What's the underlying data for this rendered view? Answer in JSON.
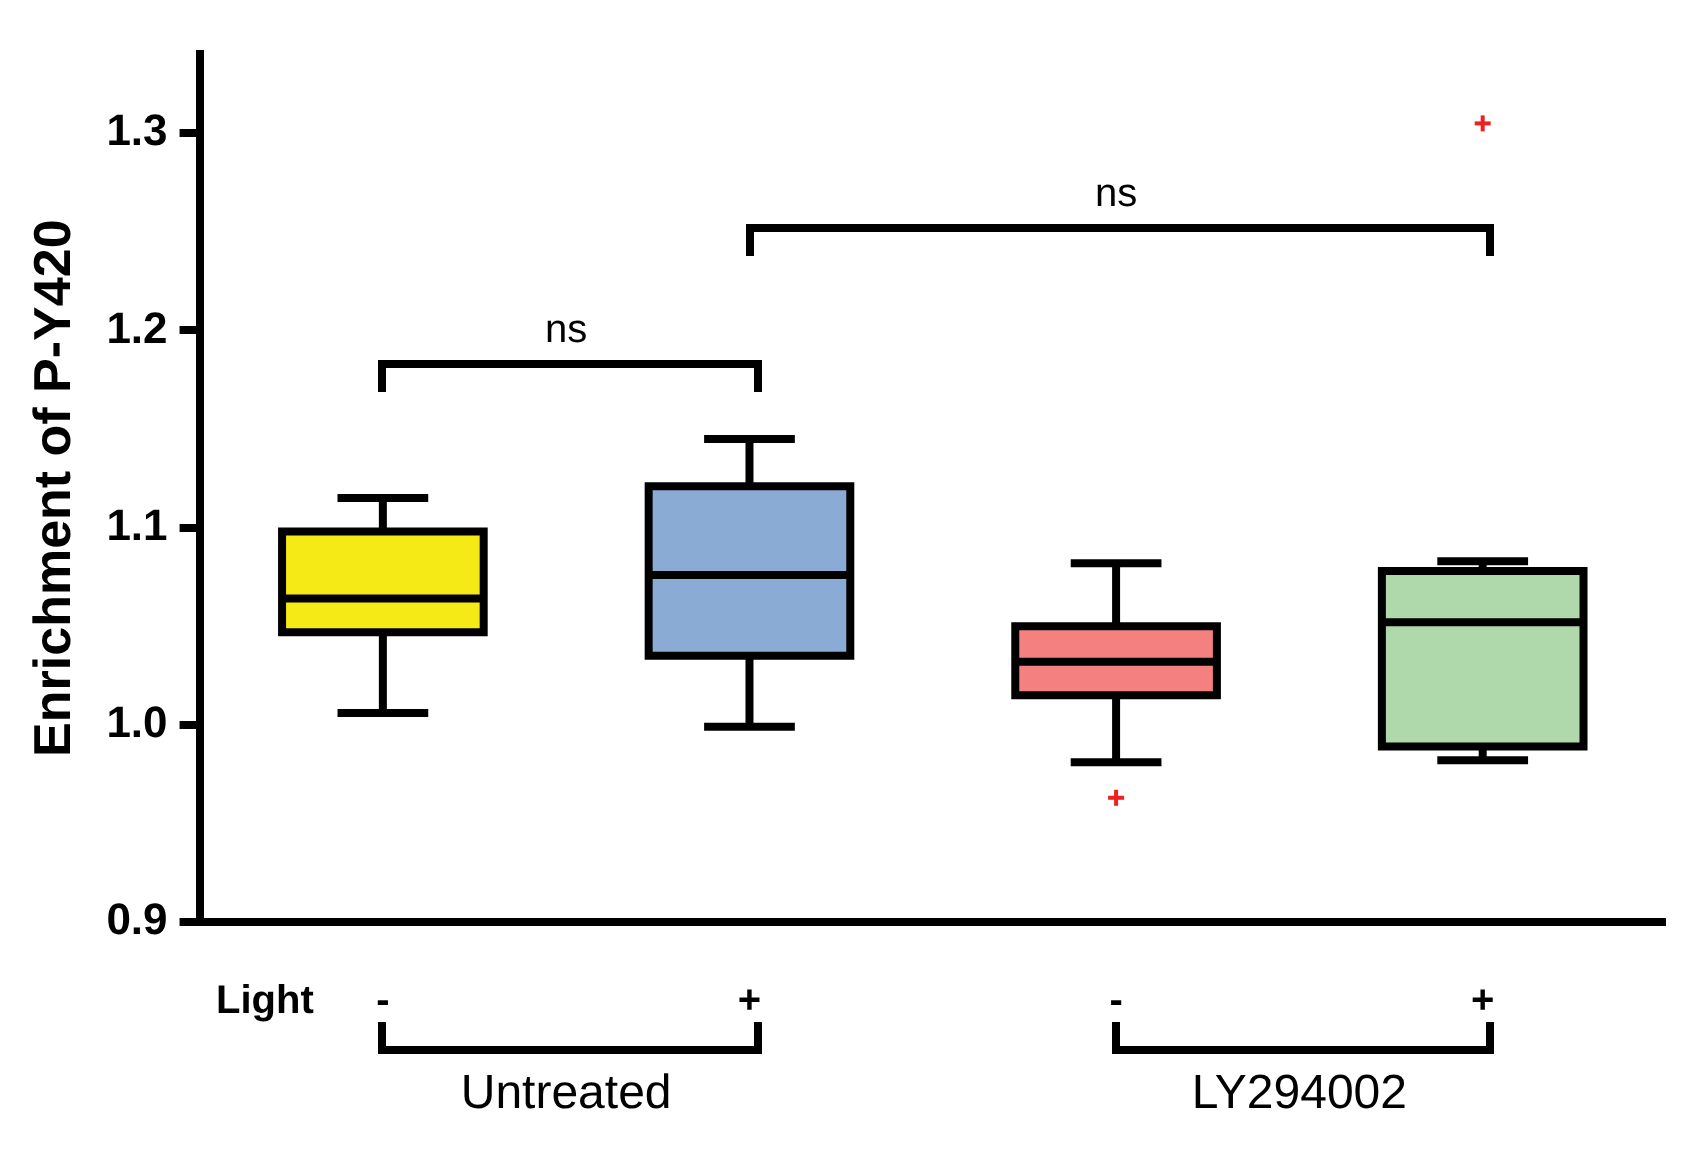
{
  "chart_data": {
    "type": "box",
    "ylabel": "Enrichment of P-Y420",
    "xlabel": "Light",
    "categories": [
      "-",
      "+",
      "-",
      "+"
    ],
    "colors": [
      "#f5e916",
      "#8aabd3",
      "#f48080",
      "#b0d9ab"
    ],
    "boxes": [
      {
        "low": 1.006,
        "q1": 1.047,
        "median": 1.064,
        "q3": 1.098,
        "high": 1.115
      },
      {
        "low": 0.999,
        "q1": 1.035,
        "median": 1.076,
        "q3": 1.121,
        "high": 1.145
      },
      {
        "low": 0.981,
        "q1": 1.015,
        "median": 1.032,
        "q3": 1.05,
        "high": 1.082,
        "outliers": [
          0.963
        ]
      },
      {
        "low": 0.982,
        "q1": 0.989,
        "median": 1.052,
        "q3": 1.078,
        "high": 1.083,
        "outliers": [
          1.305
        ]
      }
    ],
    "ylim": [
      0.9,
      1.34
    ],
    "yticks": [
      0.9,
      {
        "value": 1,
        "label": "1.0"
      },
      1.1,
      1.2,
      1.3
    ],
    "grid": false,
    "legend": false,
    "annotations": [
      "ns",
      "ns",
      "Untreated",
      "LY294002"
    ]
  }
}
